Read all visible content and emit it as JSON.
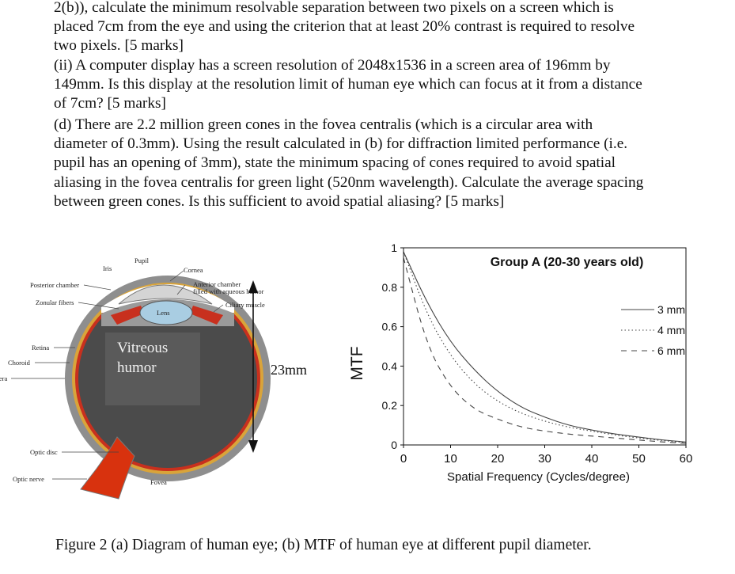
{
  "question_text": {
    "part_b_cont": [
      "2(b)), calculate the minimum resolvable separation between two pixels on a screen which is",
      "placed 7cm from the eye and using the criterion that at least 20% contrast is required to resolve",
      "two pixels. [5 marks]"
    ],
    "part_ii": [
      "(ii) A computer display has a screen resolution of 2048x1536 in a screen area of 196mm by",
      "149mm. Is this display at the resolution limit of human eye which can focus at it from a distance",
      "of 7cm? [5 marks]"
    ],
    "part_d": [
      "(d) There are 2.2 million green cones in the fovea centralis (which is a circular area with",
      "diameter of 0.3mm). Using the result calculated in (b) for diffraction limited performance (i.e.",
      "pupil has an opening of 3mm), state the minimum spacing of cones required to avoid spatial",
      "aliasing in the fovea centralis for green light (520nm wavelength). Calculate the average spacing",
      "between green cones. Is this sufficient to avoid spatial aliasing? [5 marks]"
    ]
  },
  "eye_diagram": {
    "labels": {
      "iris": "Iris",
      "pupil": "Pupil",
      "cornea": "Cornea",
      "anterior_chamber_1": "Anterior chamber",
      "anterior_chamber_2": "filled with aqueous humor",
      "posterior_chamber": "Posterior chamber",
      "zonular_fibers": "Zonular fibers",
      "ciliary_muscle": "Ciliary muscle",
      "lens": "Lens",
      "retina": "Retina",
      "choroid": "Choroid",
      "sclera": "Sclera",
      "optic_disc": "Optic disc",
      "optic_nerve": "Optic nerve",
      "fovea": "Fovea",
      "vitreous_1": "Vitreous",
      "vitreous_2": "humor",
      "dimension": "23mm"
    },
    "colors": {
      "sclera": "#8e8e8e",
      "choroid": "#d9a43a",
      "retina": "#c8301e",
      "vitreous": "#4b4b4b",
      "lens": "#a9cde2",
      "cornea": "#d4d4d4",
      "nerve": "#d8320e"
    }
  },
  "chart_data": {
    "type": "line",
    "title": "Group A (20-30 years old)",
    "xlabel": "Spatial Frequency (Cycles/degree)",
    "ylabel": "MTF",
    "xlim": [
      0,
      60
    ],
    "ylim": [
      0,
      1
    ],
    "x_ticks": [
      "0",
      "10",
      "20",
      "30",
      "40",
      "50",
      "60"
    ],
    "y_ticks": [
      "0",
      "0.2",
      "0.4",
      "0.6",
      "0.8",
      "1"
    ],
    "x_tick_values": [
      0,
      10,
      20,
      30,
      40,
      50,
      60
    ],
    "y_tick_values": [
      0,
      0.2,
      0.4,
      0.6,
      0.8,
      1
    ],
    "legend": [
      "3 mm",
      "4 mm",
      "6 mm"
    ],
    "legend_position": "right",
    "series": [
      {
        "name": "3 mm",
        "style": "solid",
        "x": [
          0,
          5,
          10,
          15,
          20,
          25,
          30,
          35,
          40,
          45,
          50,
          55,
          60
        ],
        "y": [
          0.98,
          0.72,
          0.52,
          0.38,
          0.27,
          0.19,
          0.14,
          0.1,
          0.075,
          0.055,
          0.04,
          0.025,
          0.015
        ]
      },
      {
        "name": "4 mm",
        "style": "dotted",
        "x": [
          0,
          5,
          10,
          15,
          20,
          25,
          30,
          35,
          40,
          45,
          50,
          55,
          60
        ],
        "y": [
          0.98,
          0.66,
          0.45,
          0.31,
          0.22,
          0.16,
          0.12,
          0.09,
          0.07,
          0.05,
          0.035,
          0.022,
          0.012
        ]
      },
      {
        "name": "6 mm",
        "style": "dashed",
        "x": [
          0,
          5,
          10,
          15,
          20,
          25,
          30,
          35,
          40,
          45,
          50,
          55,
          60
        ],
        "y": [
          0.95,
          0.5,
          0.29,
          0.18,
          0.13,
          0.09,
          0.07,
          0.055,
          0.045,
          0.035,
          0.025,
          0.015,
          0.008
        ]
      }
    ]
  },
  "caption": "Figure 2 (a) Diagram of human eye; (b) MTF of human eye at different pupil diameter."
}
